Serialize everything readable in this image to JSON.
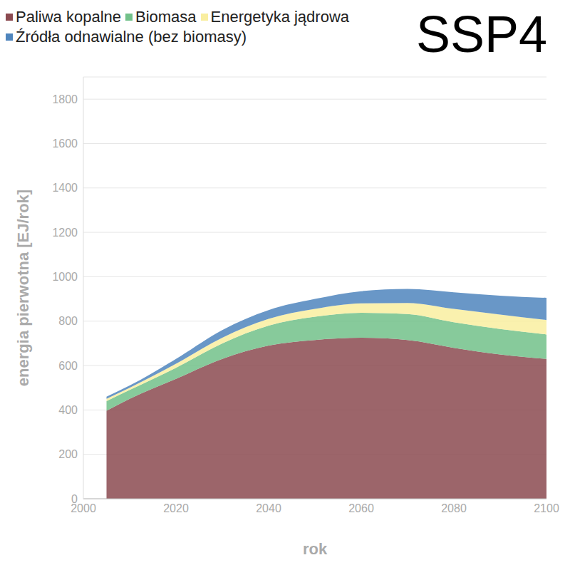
{
  "chart_data": {
    "type": "area",
    "title": "SSP4",
    "x_label": "rok",
    "y_label": "energia pierwotna [EJ/rok]",
    "x": [
      2005,
      2010,
      2020,
      2030,
      2040,
      2050,
      2060,
      2070,
      2080,
      2090,
      2100
    ],
    "series": [
      {
        "name": "Paliwa kopalne",
        "color": "#8b4a50",
        "values": [
          396,
          450,
          540,
          630,
          690,
          715,
          725,
          715,
          680,
          650,
          630
        ]
      },
      {
        "name": "Biomasa",
        "color": "#72c18a",
        "values": [
          44,
          40,
          50,
          70,
          90,
          105,
          113,
          117,
          115,
          115,
          110
        ]
      },
      {
        "name": "Energetyka jądrowa",
        "color": "#f9eea0",
        "values": [
          10,
          10,
          18,
          25,
          30,
          35,
          42,
          50,
          60,
          65,
          65
        ]
      },
      {
        "name": "Źródła odnawialne (bez biomasy)",
        "color": "#4f85bd",
        "values": [
          10,
          10,
          22,
          35,
          40,
          45,
          55,
          63,
          75,
          85,
          100
        ]
      }
    ],
    "xlim": [
      2000,
      2100
    ],
    "ylim": [
      0,
      1900
    ],
    "xticks": [
      2000,
      2020,
      2040,
      2060,
      2080,
      2100
    ],
    "yticks": [
      0,
      200,
      400,
      600,
      800,
      1000,
      1200,
      1400,
      1600,
      1800
    ],
    "grid": true,
    "stacked": true,
    "legend": "top-left"
  }
}
